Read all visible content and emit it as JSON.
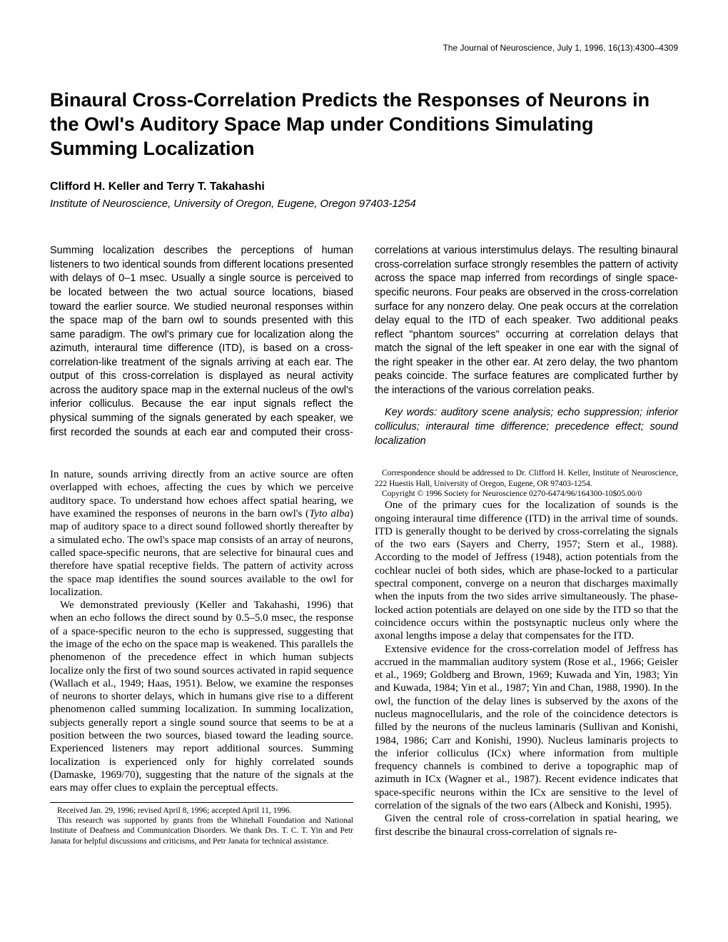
{
  "journal_header": "The Journal of Neuroscience, July 1, 1996, 16(13):4300–4309",
  "title": "Binaural Cross-Correlation Predicts the Responses of Neurons in the Owl's Auditory Space Map under Conditions Simulating Summing Localization",
  "authors": "Clifford H. Keller and Terry T. Takahashi",
  "affiliation": "Institute of Neuroscience, University of Oregon, Eugene, Oregon 97403-1254",
  "abstract_main": "Summing localization describes the perceptions of human listeners to two identical sounds from different locations presented with delays of 0–1 msec. Usually a single source is perceived to be located between the two actual source locations, biased toward the earlier source. We studied neuronal responses within the space map of the barn owl to sounds presented with this same paradigm. The owl's primary cue for localization along the azimuth, interaural time difference (ITD), is based on a cross-correlation-like treatment of the signals arriving at each ear. The output of this cross-correlation is displayed as neural activity across the auditory space map in the external nucleus of the owl's inferior colliculus. Because the ear input signals reflect the physical summing of the signals generated by each speaker, we first recorded the sounds at each ear and computed their cross-correlations at various interstimulus delays. The resulting binaural cross-correlation surface strongly resembles the pattern of activity across the space map inferred from recordings of single space-specific neurons. Four peaks are observed in the cross-correlation surface for any nonzero delay. One peak occurs at the correlation delay equal to the ITD of each speaker. Two additional peaks reflect \"phantom sources\" occurring at correlation delays that match the signal of the left speaker in one ear with the signal of the right speaker in the other ear. At zero delay, the two phantom peaks coincide. The surface features are complicated further by the interactions of the various correlation peaks.",
  "keywords_label": "Key words: ",
  "keywords": "auditory scene analysis; echo suppression; inferior colliculus; interaural time difference; precedence effect; sound localization",
  "body_p1a": "In nature, sounds arriving directly from an active source are often overlapped with echoes, affecting the cues by which we perceive auditory space. To understand how echoes affect spatial hearing, we have examined the responses of neurons in the barn owl's (",
  "species": "Tyto alba",
  "body_p1b": ") map of auditory space to a direct sound followed shortly thereafter by a simulated echo. The owl's space map consists of an array of neurons, called space-specific neurons, that are selective for binaural cues and therefore have spatial receptive fields. The pattern of activity across the space map identifies the sound sources available to the owl for localization.",
  "body_p2": "We demonstrated previously (Keller and Takahashi, 1996) that when an echo follows the direct sound by 0.5–5.0 msec, the response of a space-specific neuron to the echo is suppressed, suggesting that the image of the echo on the space map is weakened. This parallels the phenomenon of the precedence effect in which human subjects localize only the first of two sound sources activated in rapid sequence (Wallach et al., 1949; Haas, 1951). Below, we examine the responses of neurons to shorter delays, which in humans give rise to a different phenomenon called summing localization. In summing localization, subjects generally report a single sound source that seems to be at a position between the two sources, biased toward the leading source. Experienced listeners may report additional sources. Summing localization is experienced only for highly correlated sounds (Damaske, 1969/70), suggesting that the nature of the signals at the ears may offer clues to explain the perceptual effects.",
  "body_p3": "One of the primary cues for the localization of sounds is the ongoing interaural time difference (ITD) in the arrival time of sounds. ITD is generally thought to be derived by cross-correlating the signals of the two ears (Sayers and Cherry, 1957; Stern et al., 1988). According to the model of Jeffress (1948), action potentials from the cochlear nuclei of both sides, which are phase-locked to a particular spectral component, converge on a neuron that discharges maximally when the inputs from the two sides arrive simultaneously. The phase-locked action potentials are delayed on one side by the ITD so that the coincidence occurs within the postsynaptic nucleus only where the axonal lengths impose a delay that compensates for the ITD.",
  "body_p4": "Extensive evidence for the cross-correlation model of Jeffress has accrued in the mammalian auditory system (Rose et al., 1966; Geisler et al., 1969; Goldberg and Brown, 1969; Kuwada and Yin, 1983; Yin and Kuwada, 1984; Yin et al., 1987; Yin and Chan, 1988, 1990). In the owl, the function of the delay lines is subserved by the axons of the nucleus magnocellularis, and the role of the coincidence detectors is filled by the neurons of the nucleus laminaris (Sullivan and Konishi, 1984, 1986; Carr and Konishi, 1990). Nucleus laminaris projects to the inferior colliculus (ICx) where information from multiple frequency channels is combined to derive a topographic map of azimuth in ICx (Wagner et al., 1987). Recent evidence indicates that space-specific neurons within the ICx are sensitive to the level of correlation of the signals of the two ears (Albeck and Konishi, 1995).",
  "body_p5": "Given the central role of cross-correlation in spatial hearing, we first describe the binaural cross-correlation of signals re-",
  "footnote_received": "Received Jan. 29, 1996; revised April 8, 1996; accepted April 11, 1996.",
  "footnote_support": "This research was supported by grants from the Whitehall Foundation and National Institute of Deafness and Communication Disorders. We thank Drs. T. C. T. Yin and Petr Janata for helpful discussions and criticisms, and Petr Janata for technical assistance.",
  "footnote_corr": "Correspondence should be addressed to Dr. Clifford H. Keller, Institute of Neuroscience, 222 Huestis Hall, University of Oregon, Eugene, OR 97403-1254.",
  "footnote_copy": "Copyright © 1996 Society for Neuroscience   0270-6474/96/164300-10$05.00/0"
}
